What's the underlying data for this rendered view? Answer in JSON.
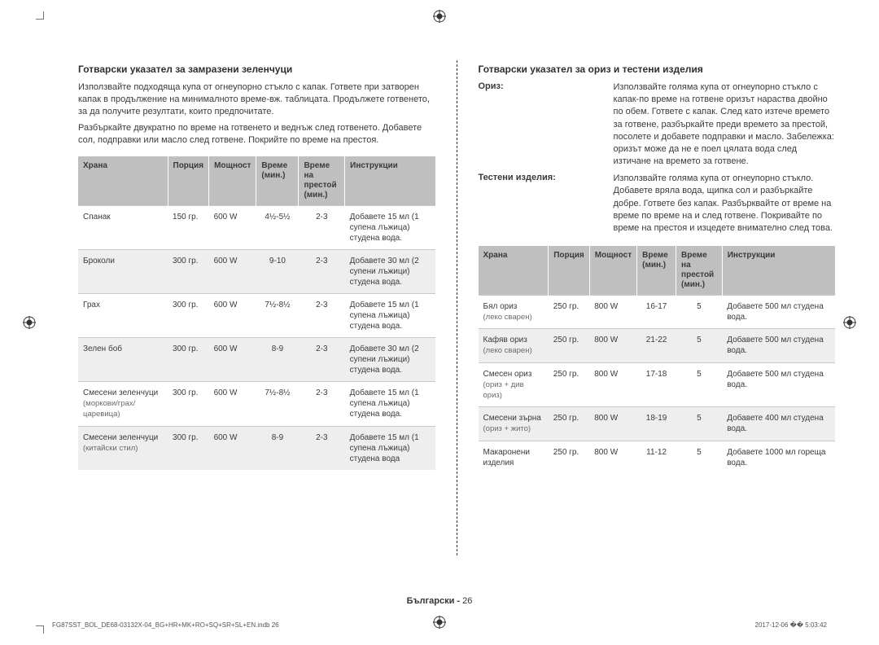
{
  "left": {
    "heading": "Готварски указател за замразени зеленчуци",
    "para1": "Използвайте подходяща купа от огнеупорно стъкло с капак. Гответе при затворен капак в продължение на минималното време-вж. таблицата. Продължете готвенето, за да получите резултати, които предпочитате.",
    "para2": "Разбъркайте двукратно по време на готвенето и веднъж след готвенето. Добавете сол, подправки или масло след готвене. Покрийте по време на престоя.",
    "headers": [
      "Храна",
      "Порция",
      "Мощност",
      "Време (мин.)",
      "Време на престой (мин.)",
      "Инструкции"
    ],
    "rows": [
      {
        "food": "Спанак",
        "sub": "",
        "portion": "150 гр.",
        "power": "600 W",
        "time": "4½-5½",
        "stand": "2-3",
        "instr": "Добавете 15 мл (1 супена лъжица) студена вода."
      },
      {
        "food": "Броколи",
        "sub": "",
        "portion": "300 гр.",
        "power": "600 W",
        "time": "9-10",
        "stand": "2-3",
        "instr": "Добавете 30 мл (2 супени лъжици) студена вода."
      },
      {
        "food": "Грах",
        "sub": "",
        "portion": "300 гр.",
        "power": "600 W",
        "time": "7½-8½",
        "stand": "2-3",
        "instr": "Добавете 15 мл (1 супена лъжица) студена вода."
      },
      {
        "food": "Зелен боб",
        "sub": "",
        "portion": "300 гр.",
        "power": "600 W",
        "time": "8-9",
        "stand": "2-3",
        "instr": "Добавете 30 мл (2 супени лъжици) студена вода."
      },
      {
        "food": "Смесени зеленчуци",
        "sub": "(моркови/грах/царевица)",
        "portion": "300 гр.",
        "power": "600 W",
        "time": "7½-8½",
        "stand": "2-3",
        "instr": "Добавете 15 мл (1 супена лъжица) студена вода."
      },
      {
        "food": "Смесени зеленчуци",
        "sub": "(китайски стил)",
        "portion": "300 гр.",
        "power": "600 W",
        "time": "8-9",
        "stand": "2-3",
        "instr": "Добавете 15 мл (1 супена лъжица) студена вода"
      }
    ]
  },
  "right": {
    "heading": "Готварски указател за ориз и тестени изделия",
    "defs": [
      {
        "term": "Ориз:",
        "body": "Използвайте голяма купа от огнеупорно стъкло с капак-по време на готвене оризът нараства двойно по обем. Гответе с капак. След като изтече времето за готвене, разбъркайте преди времето за престой, посолете и добавете подправки и масло. Забележка: оризът може да не е поел цялата вода след изтичане на времето за готвене."
      },
      {
        "term": "Тестени изделия:",
        "body": "Използвайте голяма купа от огнеупорно стъкло. Добавете вряла вода, щипка сол и разбъркайте добре. Гответе без капак. Разбърквайте от време на време по време на и след готвене. Покривайте по време на престоя и изцедете внимателно след това."
      }
    ],
    "headers": [
      "Храна",
      "Порция",
      "Мощност",
      "Време (мин.)",
      "Време на престой (мин.)",
      "Инструкции"
    ],
    "rows": [
      {
        "food": "Бял ориз",
        "sub": "(леко сварен)",
        "portion": "250 гр.",
        "power": "800 W",
        "time": "16-17",
        "stand": "5",
        "instr": "Добавете 500 мл студена вода."
      },
      {
        "food": "Кафяв ориз",
        "sub": "(леко сварен)",
        "portion": "250 гр.",
        "power": "800 W",
        "time": "21-22",
        "stand": "5",
        "instr": "Добавете 500 мл студена вода."
      },
      {
        "food": "Смесен ориз",
        "sub": "(ориз + див ориз)",
        "portion": "250 гр.",
        "power": "800 W",
        "time": "17-18",
        "stand": "5",
        "instr": "Добавете 500 мл студена вода."
      },
      {
        "food": "Смесени зърна",
        "sub": "(ориз + жито)",
        "portion": "250 гр.",
        "power": "800 W",
        "time": "18-19",
        "stand": "5",
        "instr": "Добавете 400 мл студена вода."
      },
      {
        "food": "Макаронени изделия",
        "sub": "",
        "portion": "250 гр.",
        "power": "800 W",
        "time": "11-12",
        "stand": "5",
        "instr": "Добавете 1000 мл гореща вода."
      }
    ]
  },
  "footer": {
    "lang": "Български",
    "sep": " - ",
    "page": "26"
  },
  "imprint": {
    "left": "FG87SST_BOL_DE68-03132X-04_BG+HR+MK+RO+SQ+SR+SL+EN.indb   26",
    "right": "2017-12-06   �� 5:03:42"
  },
  "colors": {
    "th_bg": "#bfbfbf",
    "row_alt": "#eeeeee",
    "text": "#3a3a3a",
    "border": "#c8c8c8"
  }
}
